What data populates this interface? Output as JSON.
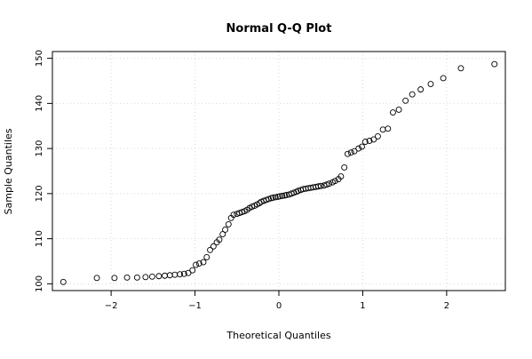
{
  "chart_data": {
    "type": "scatter",
    "title": "Normal Q-Q Plot",
    "xlabel": "Theoretical Quantiles",
    "ylabel": "Sample Quantiles",
    "xlim": [
      -2.7,
      2.7
    ],
    "ylim": [
      98.5,
      151.5
    ],
    "xticks": [
      -2,
      -1,
      0,
      1,
      2
    ],
    "xtick_labels": [
      "−2",
      "−1",
      "0",
      "1",
      "2"
    ],
    "yticks": [
      100,
      110,
      120,
      130,
      140,
      150
    ],
    "ytick_labels": [
      "100",
      "110",
      "120",
      "130",
      "140",
      "150"
    ],
    "grid": true,
    "marker": "open-circle",
    "marker_color": "#000000",
    "grid_color": "#d9d9d9",
    "points": [
      [
        -2.57,
        100.4
      ],
      [
        -2.17,
        101.3
      ],
      [
        -1.96,
        101.3
      ],
      [
        -1.81,
        101.4
      ],
      [
        -1.69,
        101.4
      ],
      [
        -1.59,
        101.5
      ],
      [
        -1.51,
        101.6
      ],
      [
        -1.43,
        101.7
      ],
      [
        -1.36,
        101.8
      ],
      [
        -1.3,
        101.9
      ],
      [
        -1.24,
        102.0
      ],
      [
        -1.18,
        102.1
      ],
      [
        -1.13,
        102.2
      ],
      [
        -1.08,
        102.4
      ],
      [
        -1.03,
        103.0
      ],
      [
        -0.99,
        104.2
      ],
      [
        -0.95,
        104.5
      ],
      [
        -0.9,
        104.8
      ],
      [
        -0.86,
        105.9
      ],
      [
        -0.82,
        107.5
      ],
      [
        -0.78,
        108.3
      ],
      [
        -0.74,
        109.2
      ],
      [
        -0.71,
        109.8
      ],
      [
        -0.67,
        111.0
      ],
      [
        -0.64,
        112.0
      ],
      [
        -0.6,
        113.2
      ],
      [
        -0.57,
        114.6
      ],
      [
        -0.54,
        115.3
      ],
      [
        -0.5,
        115.5
      ],
      [
        -0.47,
        115.7
      ],
      [
        -0.44,
        115.9
      ],
      [
        -0.41,
        116.1
      ],
      [
        -0.38,
        116.4
      ],
      [
        -0.35,
        116.8
      ],
      [
        -0.32,
        117.1
      ],
      [
        -0.29,
        117.3
      ],
      [
        -0.26,
        117.6
      ],
      [
        -0.23,
        117.9
      ],
      [
        -0.21,
        118.2
      ],
      [
        -0.18,
        118.4
      ],
      [
        -0.15,
        118.6
      ],
      [
        -0.12,
        118.8
      ],
      [
        -0.09,
        119.0
      ],
      [
        -0.07,
        119.1
      ],
      [
        -0.04,
        119.2
      ],
      [
        -0.01,
        119.3
      ],
      [
        0.01,
        119.4
      ],
      [
        0.04,
        119.5
      ],
      [
        0.07,
        119.6
      ],
      [
        0.09,
        119.7
      ],
      [
        0.12,
        119.8
      ],
      [
        0.15,
        120.0
      ],
      [
        0.18,
        120.2
      ],
      [
        0.21,
        120.4
      ],
      [
        0.23,
        120.6
      ],
      [
        0.26,
        120.8
      ],
      [
        0.29,
        121.0
      ],
      [
        0.32,
        121.1
      ],
      [
        0.35,
        121.2
      ],
      [
        0.38,
        121.3
      ],
      [
        0.41,
        121.4
      ],
      [
        0.44,
        121.5
      ],
      [
        0.47,
        121.6
      ],
      [
        0.5,
        121.7
      ],
      [
        0.54,
        121.8
      ],
      [
        0.57,
        122.0
      ],
      [
        0.6,
        122.2
      ],
      [
        0.64,
        122.5
      ],
      [
        0.67,
        122.8
      ],
      [
        0.71,
        123.2
      ],
      [
        0.74,
        123.8
      ],
      [
        0.78,
        125.8
      ],
      [
        0.82,
        128.8
      ],
      [
        0.86,
        129.1
      ],
      [
        0.9,
        129.4
      ],
      [
        0.95,
        130.0
      ],
      [
        0.99,
        130.4
      ],
      [
        1.03,
        131.5
      ],
      [
        1.08,
        131.7
      ],
      [
        1.13,
        132.0
      ],
      [
        1.18,
        132.7
      ],
      [
        1.24,
        134.2
      ],
      [
        1.3,
        134.4
      ],
      [
        1.36,
        138.0
      ],
      [
        1.43,
        138.6
      ],
      [
        1.51,
        140.6
      ],
      [
        1.59,
        142.0
      ],
      [
        1.69,
        143.1
      ],
      [
        1.81,
        144.3
      ],
      [
        1.96,
        145.6
      ],
      [
        2.17,
        147.8
      ],
      [
        2.57,
        148.7
      ]
    ]
  }
}
